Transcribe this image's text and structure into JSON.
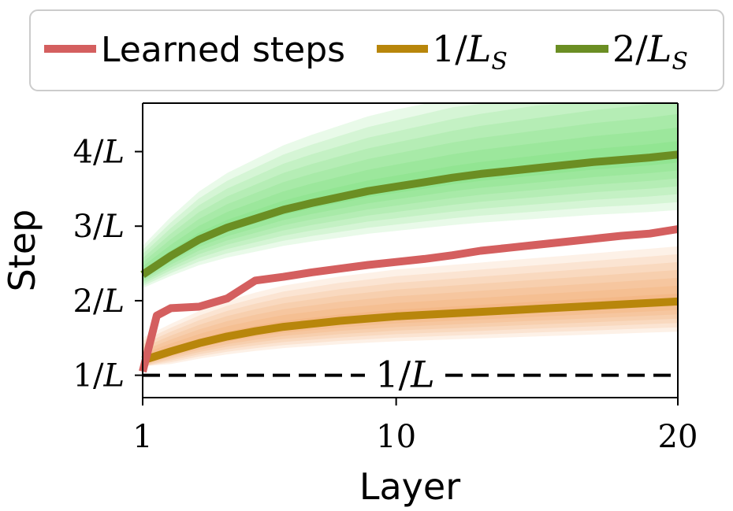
{
  "chart_data": {
    "type": "line",
    "xlabel": "Layer",
    "ylabel": "Step",
    "xlim": [
      1,
      20
    ],
    "ylim": [
      0.7,
      4.65
    ],
    "x_ticks": [
      1,
      10,
      20
    ],
    "y_ticks": [
      {
        "value": 1,
        "num": "1",
        "den": "L"
      },
      {
        "value": 2,
        "num": "2",
        "den": "L"
      },
      {
        "value": 3,
        "num": "3",
        "den": "L"
      },
      {
        "value": 4,
        "num": "4",
        "den": "L"
      }
    ],
    "legend_position": "top",
    "series": [
      {
        "name": "Learned steps",
        "color": "#d45f5f",
        "x": [
          1,
          1.5,
          2,
          3,
          4,
          5,
          6,
          7,
          8,
          9,
          10,
          11,
          12,
          13,
          14,
          15,
          16,
          17,
          18,
          19,
          20
        ],
        "y": [
          1.05,
          1.8,
          1.9,
          1.92,
          2.03,
          2.27,
          2.32,
          2.38,
          2.43,
          2.48,
          2.52,
          2.56,
          2.61,
          2.67,
          2.71,
          2.75,
          2.79,
          2.83,
          2.87,
          2.9,
          2.96
        ]
      },
      {
        "name": "1/L_S",
        "legend_num": "1",
        "legend_sub": "S",
        "color": "#b8860b",
        "band_color": "#f08c3c",
        "band_bottom": 1.12,
        "x": [
          1,
          2,
          3,
          4,
          5,
          6,
          7,
          8,
          9,
          10,
          11,
          12,
          13,
          14,
          15,
          16,
          17,
          18,
          19,
          20
        ],
        "y": [
          1.2,
          1.32,
          1.43,
          1.52,
          1.59,
          1.65,
          1.69,
          1.73,
          1.76,
          1.79,
          1.81,
          1.83,
          1.85,
          1.87,
          1.89,
          1.91,
          1.93,
          1.95,
          1.97,
          1.99
        ]
      },
      {
        "name": "2/L_S",
        "legend_num": "2",
        "legend_sub": "S",
        "color": "#6b8e23",
        "band_color": "#4ed84e",
        "band_bottom": 2.12,
        "x": [
          1,
          2,
          3,
          4,
          5,
          6,
          7,
          8,
          9,
          10,
          11,
          12,
          13,
          14,
          15,
          16,
          17,
          18,
          19,
          20
        ],
        "y": [
          2.35,
          2.6,
          2.82,
          2.98,
          3.1,
          3.22,
          3.31,
          3.39,
          3.47,
          3.53,
          3.59,
          3.65,
          3.7,
          3.74,
          3.78,
          3.82,
          3.86,
          3.89,
          3.92,
          3.96
        ]
      }
    ],
    "reference_line": {
      "value": 1,
      "num": "1",
      "den": "L",
      "style": "dashed",
      "color": "#000000"
    }
  }
}
